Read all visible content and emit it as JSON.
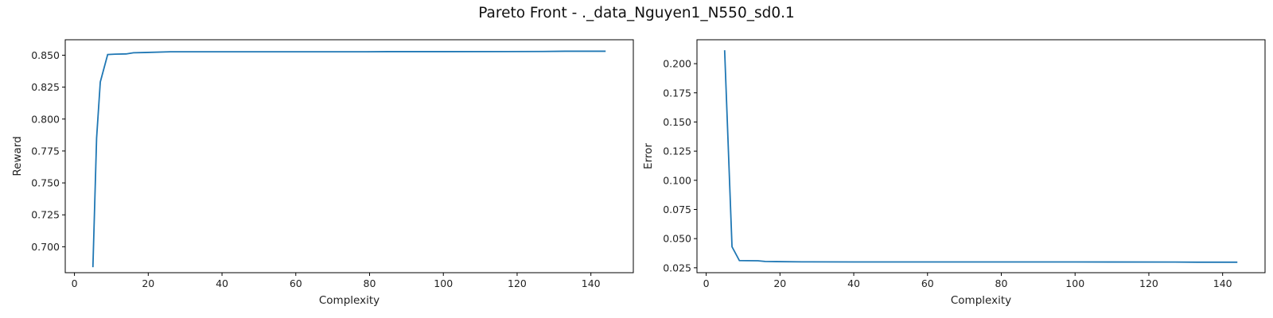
{
  "figure": {
    "title": "Pareto Front - ._data_Nguyen1_N550_sd0.1"
  },
  "chart_data": [
    {
      "type": "line",
      "xlabel": "Complexity",
      "ylabel": "Reward",
      "xlim": [
        -2.5,
        151.5
      ],
      "ylim": [
        0.6797,
        0.8621
      ],
      "xticks": [
        0,
        20,
        40,
        60,
        80,
        100,
        120,
        140
      ],
      "yticks": [
        0.7,
        0.725,
        0.75,
        0.775,
        0.8,
        0.825,
        0.85
      ],
      "ytick_decimals": 3,
      "grid": false,
      "color": "#1f77b4",
      "x": [
        5,
        6,
        7,
        9,
        11,
        14,
        16,
        19,
        26,
        40,
        60,
        79,
        85,
        100,
        127,
        133,
        144
      ],
      "y": [
        0.684,
        0.785,
        0.829,
        0.8505,
        0.8508,
        0.851,
        0.8519,
        0.8521,
        0.8527,
        0.8527,
        0.8527,
        0.8527,
        0.8528,
        0.8528,
        0.8529,
        0.8531,
        0.8531
      ]
    },
    {
      "type": "line",
      "xlabel": "Complexity",
      "ylabel": "Error",
      "xlim": [
        -2.5,
        151.5
      ],
      "ylim": [
        0.0208,
        0.2205
      ],
      "xticks": [
        0,
        20,
        40,
        60,
        80,
        100,
        120,
        140
      ],
      "yticks": [
        0.025,
        0.05,
        0.075,
        0.1,
        0.125,
        0.15,
        0.175,
        0.2
      ],
      "ytick_decimals": 3,
      "grid": false,
      "color": "#1f77b4",
      "x": [
        5,
        7,
        9,
        11,
        14,
        16,
        19,
        26,
        40,
        60,
        80,
        100,
        127,
        133,
        144
      ],
      "y": [
        0.2115,
        0.043,
        0.0312,
        0.0311,
        0.031,
        0.0304,
        0.0303,
        0.0301,
        0.03,
        0.03,
        0.03,
        0.03,
        0.0299,
        0.0298,
        0.0298
      ]
    }
  ]
}
